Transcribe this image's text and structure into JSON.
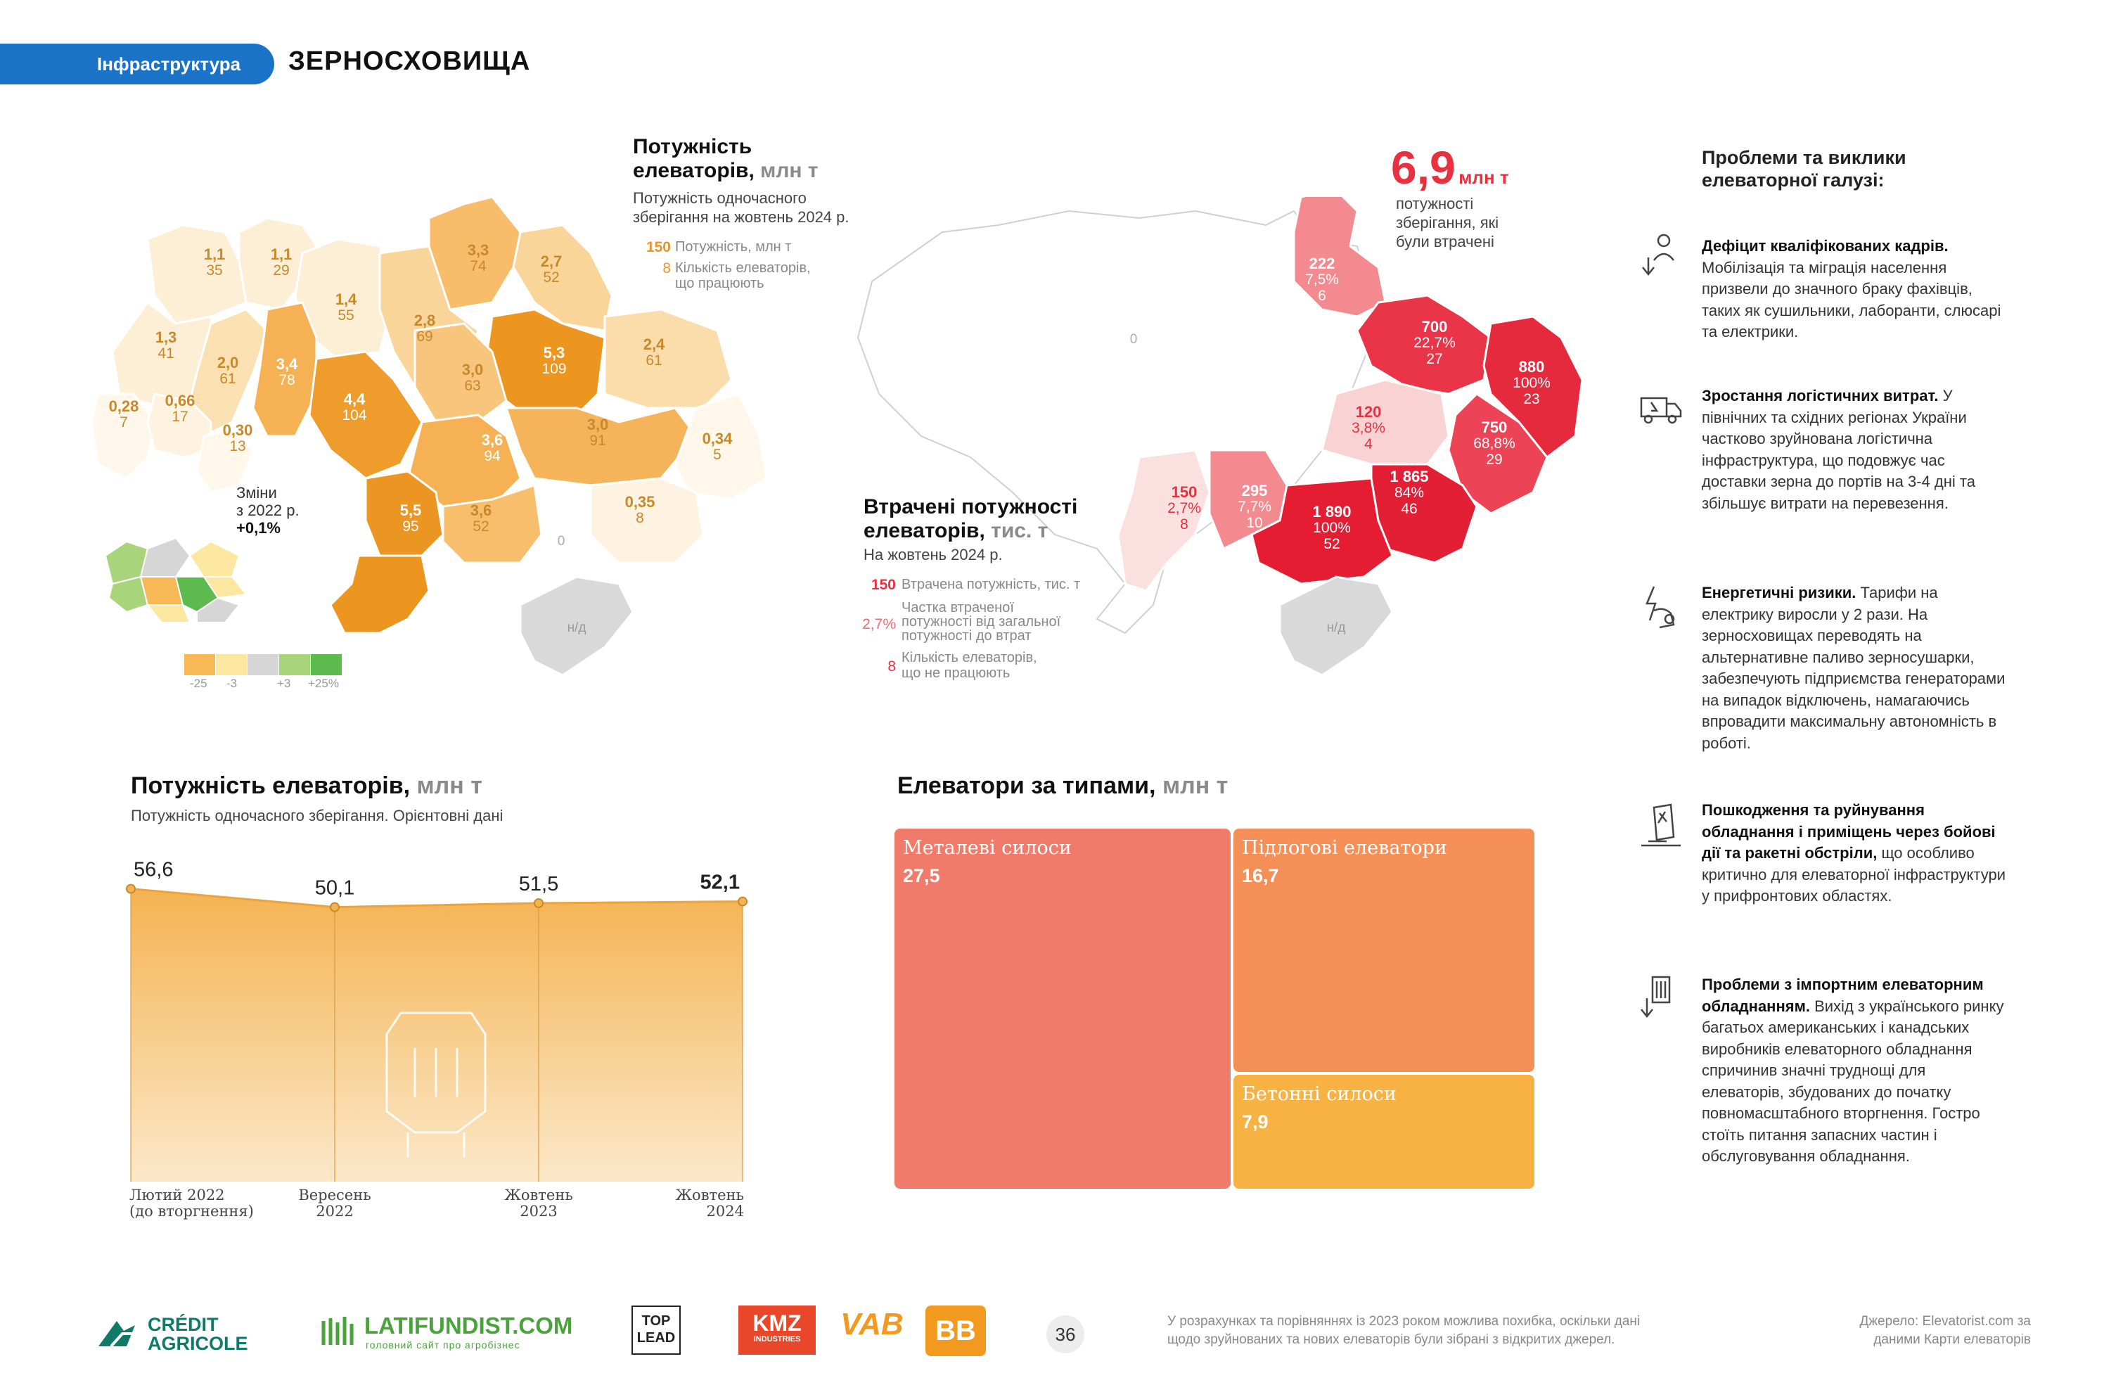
{
  "header": {
    "section_tag": "Інфраструктура",
    "title": "ЗЕРНОСХОВИЩА"
  },
  "capacity_map": {
    "title_line1": "Потужність",
    "title_line2": "елеваторів,",
    "unit": "млн т",
    "subtitle_line1": "Потужність одночасного",
    "subtitle_line2": "зберігання на жовтень 2024 р.",
    "legend": [
      {
        "value": "150",
        "text": "Потужність, млн т"
      },
      {
        "value": "8",
        "text_line1": "Кількість елеваторів,",
        "text_line2": "що працюють"
      }
    ],
    "change_label_line1": "Зміни",
    "change_label_line2": "з 2022 р.",
    "change_value": "+0,1%",
    "scale_labels": [
      "-25",
      "-3",
      "+3",
      "+25%"
    ],
    "scale_colors": [
      "#f6b955",
      "#fbe7a0",
      "#d6d6d6",
      "#a8d57c",
      "#5cba4f"
    ],
    "regions": [
      {
        "cap": "1,1",
        "count": "35",
        "color": "#fdefd6"
      },
      {
        "cap": "1,1",
        "count": "29",
        "color": "#fdefd6"
      },
      {
        "cap": "1,3",
        "count": "41",
        "color": "#fdefd6"
      },
      {
        "cap": "1,4",
        "count": "55",
        "color": "#fdefd6"
      },
      {
        "cap": "3,3",
        "count": "74",
        "color": "#f7bd6a"
      },
      {
        "cap": "2,7",
        "count": "52",
        "color": "#fad59a"
      },
      {
        "cap": "2,8",
        "count": "69",
        "color": "#fad59a"
      },
      {
        "cap": "2,0",
        "count": "61",
        "color": "#fbe0b2"
      },
      {
        "cap": "3,4",
        "count": "78",
        "color": "#f5b153"
      },
      {
        "cap": "5,3",
        "count": "109",
        "color": "#ec951f"
      },
      {
        "cap": "2,4",
        "count": "61",
        "color": "#fbdcab"
      },
      {
        "cap": "0,28",
        "count": "7",
        "color": "#fef7ea"
      },
      {
        "cap": "0,66",
        "count": "17",
        "color": "#fef3e0"
      },
      {
        "cap": "4,4",
        "count": "104",
        "color": "#ee9c2c"
      },
      {
        "cap": "3,0",
        "count": "63",
        "color": "#f8c57c"
      },
      {
        "cap": "0,30",
        "count": "13",
        "color": "#fef7ea"
      },
      {
        "cap": "3,6",
        "count": "94",
        "color": "#f5b153"
      },
      {
        "cap": "3,0",
        "count": "91",
        "color": "#f5b459"
      },
      {
        "cap": "0,34",
        "count": "5",
        "color": "#fef7ea"
      },
      {
        "cap": "5,5",
        "count": "95",
        "color": "#eb9523"
      },
      {
        "cap": "3,6",
        "count": "52",
        "color": "#f7be6c"
      },
      {
        "cap": "0,35",
        "count": "8",
        "color": "#fef3e0"
      },
      {
        "cap": "",
        "count": "",
        "color": "#ec951f"
      }
    ],
    "zero_label": "0",
    "na_label": "н/д"
  },
  "lost_map": {
    "headline_value": "6,9",
    "headline_unit": "млн т",
    "headline_text_line1": "потужності",
    "headline_text_line2": "зберігання, які",
    "headline_text_line3": "були втрачені",
    "title_line1": "Втрачені потужності",
    "title_line2": "елеваторів,",
    "unit": "тис. т",
    "subtitle": "На жовтень 2024 р.",
    "legend": [
      {
        "value": "150",
        "text": "Втрачена потужність, тис. т"
      },
      {
        "value": "2,7%",
        "text_line1": "Частка втраченої",
        "text_line2": "потужності від загальної",
        "text_line3": "потужності до втрат"
      },
      {
        "value": "8",
        "text_line1": "Кількість елеваторів,",
        "text_line2": "що не працюють"
      }
    ],
    "regions": [
      {
        "lost": "222",
        "share": "7,5%",
        "count": "6"
      },
      {
        "lost": "700",
        "share": "22,7%",
        "count": "27"
      },
      {
        "lost": "880",
        "share": "100%",
        "count": "23"
      },
      {
        "lost": "120",
        "share": "3,8%",
        "count": "4"
      },
      {
        "lost": "750",
        "share": "68,8%",
        "count": "29"
      },
      {
        "lost": "150",
        "share": "2,7%",
        "count": "8"
      },
      {
        "lost": "295",
        "share": "7,7%",
        "count": "10"
      },
      {
        "lost": "1 865",
        "share": "84%",
        "count": "46"
      },
      {
        "lost": "1 890",
        "share": "100%",
        "count": "52"
      }
    ],
    "zero_label": "0",
    "na_label": "н/д"
  },
  "problems": {
    "title_line1": "Проблеми та виклики",
    "title_line2": "елеваторної галузі:",
    "items": [
      {
        "icon": "worker-down-arrow-icon",
        "bold": "Дефіцит кваліфікованих кадрів.",
        "text": " Мобілізація та міграція населення призвели до значного браку фахівців, таких як сушильники, лаборанти, слюсарі та електрики."
      },
      {
        "icon": "truck-money-icon",
        "bold": "Зростання логістичних витрат.",
        "text": " У північних та східних регіонах України частково зруйнована логістична інфраструктура, що подовжує час доставки зерна до портів на 3-4 дні та збільшує витрати на перевезення."
      },
      {
        "icon": "lightning-hand-icon",
        "bold": "Енергетичні ризики.",
        "text": " Тарифи на електрику виросли у 2 рази. На зерносховищах переводять на альтернативне паливо зерносушарки, забезпечують підприємства генераторами на випадок відключень, намагаючись впровадити максимальну автономність в роботі."
      },
      {
        "icon": "damaged-silo-icon",
        "bold": "Пошкодження та руйнування обладнання і приміщень через бойові дії та ракетні обстріли,",
        "text": " що особливо критично для елеваторної інфраструктури у прифронтових областях."
      },
      {
        "icon": "import-equipment-icon",
        "bold": "Проблеми з імпортним елеваторним обладнанням.",
        "text": " Вихід з українського ринку багатьох американських і канадських виробників елеваторного обладнання спричинив значні труднощі для елеваторів, збудованих до початку повномасштабного вторгнення. Гостро стоїть питання запасних частин і обслуговування обладнання."
      }
    ]
  },
  "line_chart_header": {
    "title": "Потужність елеваторів,",
    "unit": "млн т",
    "subtitle": "Потужність одночасного зберігання. Орієнтовні дані"
  },
  "treemap_header": {
    "title": "Елеватори за типами,",
    "unit": "млн т"
  },
  "chart_data": [
    {
      "type": "area",
      "title": "Потужність елеваторів, млн т",
      "ylabel": "",
      "xlabel": "",
      "x": [
        {
          "line1": "Лютий 2022",
          "line2": "(до вторгнення)"
        },
        {
          "line1": "Вересень",
          "line2": "2022"
        },
        {
          "line1": "Жовтень",
          "line2": "2023"
        },
        {
          "line1": "Жовтень",
          "line2": "2024"
        }
      ],
      "values": [
        56.6,
        50.1,
        51.5,
        52.1
      ],
      "value_labels": [
        "56,6",
        "50,1",
        "51,5",
        "52,1"
      ],
      "ylim": [
        0,
        60
      ],
      "color": "#f4b351",
      "grid": false
    },
    {
      "type": "treemap",
      "title": "Елеватори за типами, млн т",
      "items": [
        {
          "label": "Металеві силоси",
          "value": 27.5,
          "value_label": "27,5",
          "color": "#f07b6b"
        },
        {
          "label": "Підлогові елеватори",
          "value": 16.7,
          "value_label": "16,7",
          "color": "#f48f58"
        },
        {
          "label": "Бетонні силоси",
          "value": 7.9,
          "value_label": "7,9",
          "color": "#f8b244"
        }
      ]
    }
  ],
  "footer": {
    "logos": [
      {
        "name": "credit-agricole-logo",
        "line1": "CRÉDIT",
        "line2": "AGRICOLE"
      },
      {
        "name": "latifundist-logo",
        "line1": "LATIFUNDIST.COM",
        "line2": "головний сайт про агробізнес"
      },
      {
        "name": "top-lead-logo",
        "line1": "TOP",
        "line2": "LEAD"
      },
      {
        "name": "kmz-logo",
        "line1": "KMZ",
        "line2": "INDUSTRIES"
      },
      {
        "name": "vab-logo",
        "line1": "VAB"
      },
      {
        "name": "bb-logo",
        "line1": "BB"
      }
    ],
    "page_number": "36",
    "note_line1": "У розрахунках та порівняннях із 2023 роком можлива похибка, оскільки дані",
    "note_line2": "щодо зруйнованих та нових елеваторів були зібрані з відкритих джерел.",
    "source_line1": "Джерело: Elevatorist.com за",
    "source_line2": "даними Карти елеваторів"
  }
}
